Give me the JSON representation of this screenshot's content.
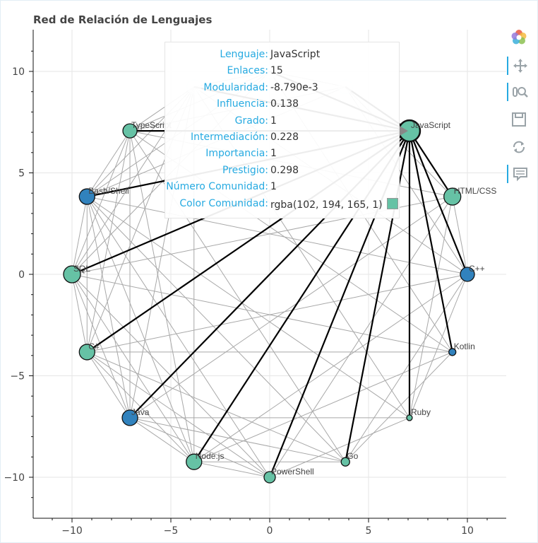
{
  "chart_data": {
    "type": "network",
    "title": "Red de Relación de Lenguajes",
    "xlim": [
      -12,
      12
    ],
    "ylim": [
      -12,
      12
    ],
    "x_ticks": [
      -10,
      -5,
      0,
      5,
      10
    ],
    "y_ticks": [
      10,
      5,
      0,
      -5,
      -10
    ],
    "x_tick_labels": [
      "−10",
      "−5",
      "0",
      "5",
      "10"
    ],
    "y_tick_labels": [
      "10",
      "5",
      "0",
      "−5",
      "−10"
    ],
    "grid": true,
    "nodes": [
      {
        "name": "JavaScript",
        "x": 7.07,
        "y": 7.07,
        "size": 15,
        "color": "#66c2a5",
        "highlight": true
      },
      {
        "name": "HTML/CSS",
        "x": 9.24,
        "y": 3.83,
        "size": 12,
        "color": "#66c2a5"
      },
      {
        "name": "C++",
        "x": 10.0,
        "y": 0.0,
        "size": 10,
        "color": "#3182bd"
      },
      {
        "name": "Kotlin",
        "x": 9.24,
        "y": -3.83,
        "size": 5,
        "color": "#3182bd"
      },
      {
        "name": "Ruby",
        "x": 7.07,
        "y": -7.07,
        "size": 4,
        "color": "#66c2a5"
      },
      {
        "name": "Go",
        "x": 3.83,
        "y": -9.24,
        "size": 6,
        "color": "#66c2a5"
      },
      {
        "name": "PowerShell",
        "x": 0.0,
        "y": -10.0,
        "size": 8,
        "color": "#66c2a5"
      },
      {
        "name": "Node.js",
        "x": -3.83,
        "y": -9.24,
        "size": 11,
        "color": "#66c2a5"
      },
      {
        "name": "Java",
        "x": -7.07,
        "y": -7.07,
        "size": 11,
        "color": "#3182bd"
      },
      {
        "name": "C#",
        "x": -9.24,
        "y": -3.83,
        "size": 11,
        "color": "#66c2a5"
      },
      {
        "name": "SQL",
        "x": -10.0,
        "y": 0.0,
        "size": 12,
        "color": "#66c2a5"
      },
      {
        "name": "Bash/Shell",
        "x": -9.24,
        "y": 3.83,
        "size": 11,
        "color": "#3182bd"
      },
      {
        "name": "TypeScript",
        "x": -7.07,
        "y": 7.07,
        "size": 10,
        "color": "#66c2a5"
      },
      {
        "name": "",
        "x": -3.83,
        "y": 9.24,
        "size": 10,
        "color": "#dfe8ee",
        "faded": true
      },
      {
        "name": "",
        "x": 0.0,
        "y": 10.0,
        "size": 10,
        "color": "#dfe8ee",
        "faded": true
      },
      {
        "name": "",
        "x": 3.83,
        "y": 9.24,
        "size": 10,
        "color": "#dfe8ee",
        "faded": true
      }
    ],
    "highlight_edges": [
      [
        0,
        1
      ],
      [
        0,
        2
      ],
      [
        0,
        3
      ],
      [
        0,
        4
      ],
      [
        0,
        5
      ],
      [
        0,
        6
      ],
      [
        0,
        7
      ],
      [
        0,
        8
      ],
      [
        0,
        9
      ],
      [
        0,
        10
      ],
      [
        0,
        11
      ],
      [
        0,
        12
      ],
      [
        0,
        13
      ],
      [
        0,
        14
      ],
      [
        0,
        15
      ]
    ],
    "edges": [
      [
        1,
        2
      ],
      [
        1,
        4
      ],
      [
        1,
        6
      ],
      [
        1,
        8
      ],
      [
        1,
        10
      ],
      [
        1,
        12
      ],
      [
        2,
        4
      ],
      [
        2,
        5
      ],
      [
        2,
        7
      ],
      [
        2,
        9
      ],
      [
        2,
        11
      ],
      [
        2,
        13
      ],
      [
        3,
        5
      ],
      [
        3,
        7
      ],
      [
        3,
        9
      ],
      [
        3,
        10
      ],
      [
        3,
        12
      ],
      [
        4,
        6
      ],
      [
        4,
        8
      ],
      [
        4,
        11
      ],
      [
        5,
        7
      ],
      [
        5,
        8
      ],
      [
        5,
        9
      ],
      [
        5,
        11
      ],
      [
        5,
        12
      ],
      [
        6,
        7
      ],
      [
        6,
        8
      ],
      [
        6,
        9
      ],
      [
        6,
        10
      ],
      [
        6,
        11
      ],
      [
        7,
        8
      ],
      [
        7,
        9
      ],
      [
        7,
        10
      ],
      [
        7,
        11
      ],
      [
        7,
        12
      ],
      [
        7,
        13
      ],
      [
        8,
        9
      ],
      [
        8,
        10
      ],
      [
        8,
        11
      ],
      [
        8,
        12
      ],
      [
        8,
        13
      ],
      [
        9,
        10
      ],
      [
        9,
        11
      ],
      [
        9,
        12
      ],
      [
        9,
        13
      ],
      [
        10,
        11
      ],
      [
        10,
        12
      ],
      [
        10,
        13
      ],
      [
        10,
        14
      ],
      [
        11,
        12
      ],
      [
        11,
        13
      ],
      [
        11,
        14
      ],
      [
        11,
        15
      ],
      [
        12,
        13
      ],
      [
        12,
        14
      ],
      [
        12,
        15
      ],
      [
        13,
        14
      ],
      [
        14,
        15
      ],
      [
        2,
        15
      ],
      [
        1,
        15
      ],
      [
        3,
        14
      ],
      [
        4,
        13
      ]
    ]
  },
  "tooltip": {
    "rows": [
      {
        "key": "Lenguaje:",
        "value": "JavaScript"
      },
      {
        "key": "Enlaces:",
        "value": "15"
      },
      {
        "key": "Modularidad:",
        "value": "-8.790e-3"
      },
      {
        "key": "Influencia:",
        "value": "0.138"
      },
      {
        "key": "Grado:",
        "value": "1"
      },
      {
        "key": "Intermediación:",
        "value": "0.228"
      },
      {
        "key": "Importancia:",
        "value": "1"
      },
      {
        "key": "Prestigio:",
        "value": "0.298"
      },
      {
        "key": "Número Comunidad:",
        "value": "1"
      },
      {
        "key": "Color Comunidad:",
        "value": "rgba(102, 194, 165, 1)"
      }
    ],
    "swatch_color": "#66c2a5"
  },
  "toolbar": {
    "icons": [
      "bokeh-logo-icon",
      "pan-icon",
      "wheel-zoom-icon",
      "save-icon",
      "reset-icon",
      "hover-icon"
    ]
  }
}
